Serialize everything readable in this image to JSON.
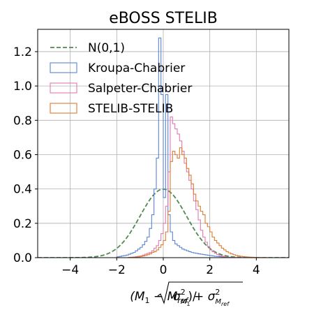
{
  "chart_data": {
    "type": "histogram",
    "title": "eBOSS STELIB",
    "xlabel_parts": {
      "lhs": "(M",
      "sub1": "1",
      "mid": " − M",
      "sub_ref": "ref",
      "close": ")/",
      "sigma": "σ",
      "sq": "2",
      "sub_M1_M": "M",
      "sub_M1_1": "1",
      "plus": " + ",
      "sub_Mref_M": "M",
      "sub_Mref_ref": "ref"
    },
    "ylabel": "",
    "xlim": [
      -5.4,
      5.4
    ],
    "ylim": [
      0.0,
      1.33
    ],
    "x_ticks": [
      -4,
      -2,
      0,
      2,
      4
    ],
    "x_tick_labels": [
      "−4",
      "−2",
      "0",
      "2",
      "4"
    ],
    "y_ticks": [
      0.0,
      0.2,
      0.4,
      0.6,
      0.8,
      1.0,
      1.2
    ],
    "y_tick_labels": [
      "0.0",
      "0.2",
      "0.4",
      "0.6",
      "0.8",
      "1.0",
      "1.2"
    ],
    "grid": true,
    "legend_position": "top-left",
    "bin_width": 0.1,
    "series": [
      {
        "name": "N(0,1)",
        "style": "dashed-line",
        "color": "#4f8a4f",
        "curve": "normal",
        "mu": 0,
        "sigma": 1
      },
      {
        "name": "Kroupa-Chabrier",
        "style": "step",
        "color": "#5b84d6",
        "x": [
          -2.0,
          -1.9,
          -1.8,
          -1.7,
          -1.6,
          -1.5,
          -1.4,
          -1.3,
          -1.2,
          -1.1,
          -1.0,
          -0.9,
          -0.8,
          -0.7,
          -0.6,
          -0.5,
          -0.4,
          -0.3,
          -0.2,
          -0.1,
          0.0,
          0.1,
          0.2,
          0.3,
          0.4,
          0.5,
          0.6,
          0.7,
          0.8,
          0.9,
          1.0,
          1.1,
          1.2,
          1.3,
          1.4,
          1.5,
          1.6,
          1.7,
          1.8,
          1.9,
          2.0,
          2.1,
          2.2,
          2.3,
          2.4,
          2.5,
          2.6,
          2.7,
          2.8,
          2.9
        ],
        "y": [
          0.005,
          0.007,
          0.01,
          0.012,
          0.015,
          0.02,
          0.025,
          0.03,
          0.04,
          0.05,
          0.06,
          0.075,
          0.095,
          0.12,
          0.17,
          0.25,
          0.4,
          0.58,
          1.28,
          0.95,
          0.35,
          0.95,
          0.25,
          0.15,
          0.1,
          0.08,
          0.07,
          0.06,
          0.05,
          0.045,
          0.04,
          0.035,
          0.03,
          0.027,
          0.025,
          0.022,
          0.02,
          0.018,
          0.016,
          0.014,
          0.012,
          0.01,
          0.008,
          0.007,
          0.006,
          0.005,
          0.004,
          0.003,
          0.002,
          0.001
        ]
      },
      {
        "name": "Salpeter-Chabrier",
        "style": "step",
        "color": "#e07ab0",
        "x": [
          -1.5,
          -1.4,
          -1.3,
          -1.2,
          -1.1,
          -1.0,
          -0.9,
          -0.8,
          -0.7,
          -0.6,
          -0.5,
          -0.4,
          -0.3,
          -0.2,
          -0.1,
          0.0,
          0.1,
          0.2,
          0.3,
          0.4,
          0.5,
          0.6,
          0.7,
          0.8,
          0.9,
          1.0,
          1.1,
          1.2,
          1.3,
          1.4,
          1.5,
          1.6,
          1.7,
          1.8,
          1.9,
          2.0,
          2.1,
          2.2,
          2.3,
          2.4,
          2.5,
          2.6,
          2.7,
          2.8,
          2.9,
          3.0,
          3.1,
          3.2,
          3.3,
          3.4
        ],
        "y": [
          0.002,
          0.003,
          0.004,
          0.006,
          0.008,
          0.01,
          0.015,
          0.02,
          0.025,
          0.03,
          0.04,
          0.055,
          0.07,
          0.1,
          0.14,
          0.2,
          0.3,
          0.5,
          0.82,
          0.78,
          0.75,
          0.72,
          0.68,
          0.62,
          0.55,
          0.5,
          0.45,
          0.4,
          0.33,
          0.28,
          0.22,
          0.16,
          0.12,
          0.09,
          0.065,
          0.045,
          0.035,
          0.025,
          0.018,
          0.012,
          0.009,
          0.006,
          0.004,
          0.003,
          0.002,
          0.0015,
          0.001,
          0.0008,
          0.0005,
          0.0002
        ]
      },
      {
        "name": "STELIB-STELIB",
        "style": "step",
        "color": "#e07b30",
        "x": [
          -1.5,
          -1.4,
          -1.3,
          -1.2,
          -1.1,
          -1.0,
          -0.9,
          -0.8,
          -0.7,
          -0.6,
          -0.5,
          -0.4,
          -0.3,
          -0.2,
          -0.1,
          0.0,
          0.1,
          0.2,
          0.3,
          0.4,
          0.5,
          0.6,
          0.7,
          0.8,
          0.9,
          1.0,
          1.1,
          1.2,
          1.3,
          1.4,
          1.5,
          1.6,
          1.7,
          1.8,
          1.9,
          2.0,
          2.1,
          2.2,
          2.3,
          2.4,
          2.5,
          2.6,
          2.7,
          2.8,
          2.9,
          3.0,
          3.1,
          3.2,
          3.3,
          3.4,
          3.5,
          3.6,
          3.7,
          3.8,
          3.9,
          4.0,
          4.1,
          4.2,
          4.3,
          4.4
        ],
        "y": [
          0.001,
          0.002,
          0.003,
          0.004,
          0.005,
          0.007,
          0.01,
          0.013,
          0.017,
          0.022,
          0.03,
          0.035,
          0.045,
          0.06,
          0.075,
          0.1,
          0.15,
          0.27,
          0.56,
          0.62,
          0.6,
          0.58,
          0.64,
          0.6,
          0.58,
          0.52,
          0.48,
          0.43,
          0.37,
          0.33,
          0.3,
          0.27,
          0.25,
          0.2,
          0.18,
          0.15,
          0.12,
          0.1,
          0.085,
          0.07,
          0.055,
          0.045,
          0.035,
          0.028,
          0.022,
          0.017,
          0.013,
          0.01,
          0.008,
          0.006,
          0.005,
          0.004,
          0.003,
          0.0025,
          0.002,
          0.0015,
          0.001,
          0.0008,
          0.0005,
          0.0002
        ]
      }
    ]
  }
}
